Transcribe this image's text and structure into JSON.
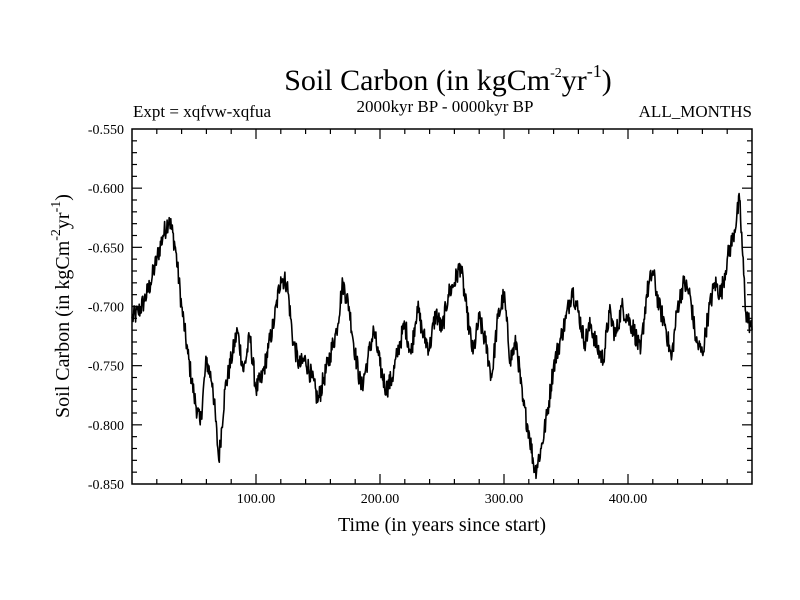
{
  "chart_data": {
    "type": "line",
    "title_main": "Soil Carbon (in kgCm",
    "title_sup1": "-2",
    "title_mid": "yr",
    "title_sup2": "-1",
    "title_end": ")",
    "subtitle_left": "Expt = xqfvw-xqfua",
    "subtitle_center": "2000kyr BP - 0000kyr BP",
    "subtitle_right": "ALL_MONTHS",
    "xlabel": "Time (in years since start)",
    "ylabel_main": "Soil Carbon (in kgCm",
    "ylabel_sup1": "-2",
    "ylabel_mid": "yr",
    "ylabel_sup2": "-1",
    "ylabel_end": ")",
    "xlim": [
      0,
      500
    ],
    "ylim": [
      -0.85,
      -0.55
    ],
    "x_ticks": [
      100,
      200,
      300,
      400
    ],
    "x_tick_labels": [
      "100.00",
      "200.00",
      "300.00",
      "400.00"
    ],
    "y_ticks": [
      -0.85,
      -0.8,
      -0.75,
      -0.7,
      -0.65,
      -0.6,
      -0.55
    ],
    "y_tick_labels": [
      "-0.850",
      "-0.800",
      "-0.750",
      "-0.700",
      "-0.650",
      "-0.600",
      "-0.550"
    ],
    "line_color": "#000000",
    "series": [
      {
        "name": "Soil Carbon",
        "x": [
          0,
          5,
          10,
          15,
          20,
          25,
          30,
          35,
          40,
          45,
          50,
          55,
          60,
          65,
          70,
          75,
          80,
          85,
          90,
          95,
          100,
          105,
          110,
          115,
          120,
          125,
          130,
          135,
          140,
          145,
          150,
          155,
          160,
          165,
          170,
          175,
          180,
          185,
          190,
          195,
          200,
          205,
          210,
          215,
          220,
          225,
          230,
          235,
          240,
          245,
          250,
          255,
          260,
          265,
          270,
          275,
          280,
          285,
          290,
          295,
          300,
          305,
          310,
          315,
          320,
          325,
          330,
          335,
          340,
          345,
          350,
          355,
          360,
          365,
          370,
          375,
          380,
          385,
          390,
          395,
          400,
          405,
          410,
          415,
          420,
          425,
          430,
          435,
          440,
          445,
          450,
          455,
          460,
          465,
          470,
          475,
          480,
          485,
          490,
          495,
          500
        ],
        "values": [
          -0.71,
          -0.705,
          -0.695,
          -0.68,
          -0.66,
          -0.64,
          -0.625,
          -0.65,
          -0.7,
          -0.74,
          -0.775,
          -0.8,
          -0.745,
          -0.765,
          -0.83,
          -0.77,
          -0.745,
          -0.72,
          -0.755,
          -0.725,
          -0.77,
          -0.76,
          -0.735,
          -0.71,
          -0.675,
          -0.68,
          -0.73,
          -0.75,
          -0.745,
          -0.76,
          -0.78,
          -0.76,
          -0.74,
          -0.72,
          -0.68,
          -0.7,
          -0.74,
          -0.77,
          -0.745,
          -0.72,
          -0.75,
          -0.77,
          -0.76,
          -0.735,
          -0.715,
          -0.74,
          -0.7,
          -0.725,
          -0.735,
          -0.705,
          -0.72,
          -0.69,
          -0.68,
          -0.665,
          -0.705,
          -0.74,
          -0.71,
          -0.73,
          -0.76,
          -0.71,
          -0.69,
          -0.745,
          -0.73,
          -0.78,
          -0.805,
          -0.84,
          -0.82,
          -0.79,
          -0.75,
          -0.73,
          -0.71,
          -0.685,
          -0.705,
          -0.73,
          -0.715,
          -0.735,
          -0.745,
          -0.705,
          -0.725,
          -0.7,
          -0.71,
          -0.72,
          -0.74,
          -0.69,
          -0.67,
          -0.7,
          -0.715,
          -0.745,
          -0.7,
          -0.68,
          -0.69,
          -0.73,
          -0.74,
          -0.705,
          -0.68,
          -0.69,
          -0.66,
          -0.64,
          -0.61,
          -0.705,
          -0.72
        ]
      }
    ]
  }
}
